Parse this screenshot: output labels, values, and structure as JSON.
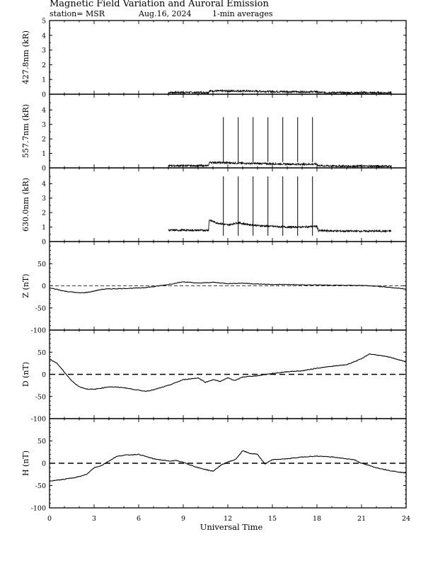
{
  "header": {
    "title": "Magnetic Field Variation and Auroral Emission",
    "station": "station= MSR",
    "date": "Aug.16, 2024",
    "averaging": "1-min averages"
  },
  "chart_data": [
    {
      "type": "line",
      "ylabel": "427.8nm (kR)",
      "ylim": [
        0,
        5
      ],
      "yticks": [
        0,
        1,
        2,
        3,
        4,
        5
      ],
      "xlim": [
        0,
        24
      ],
      "series": [
        {
          "x": [
            8.0,
            10.7,
            10.75,
            12,
            13,
            14,
            15,
            16,
            17,
            18,
            18.1,
            20,
            23.0
          ],
          "y": [
            0.12,
            0.12,
            0.22,
            0.22,
            0.22,
            0.2,
            0.18,
            0.17,
            0.16,
            0.17,
            0.12,
            0.1,
            0.1
          ]
        }
      ]
    },
    {
      "type": "line",
      "ylabel": "557.7nm (kR)",
      "ylim": [
        0,
        4.5
      ],
      "yticks": [
        0,
        1,
        2,
        3,
        4
      ],
      "xlim": [
        0,
        24
      ],
      "series": [
        {
          "x": [
            8.0,
            10.7,
            10.75,
            12,
            13,
            14,
            15,
            16,
            17,
            18,
            18.1,
            20,
            23.0
          ],
          "y": [
            0.15,
            0.15,
            0.38,
            0.35,
            0.32,
            0.3,
            0.28,
            0.26,
            0.25,
            0.26,
            0.15,
            0.12,
            0.12
          ]
        }
      ],
      "spikes": {
        "x": [
          11.7,
          12.7,
          13.7,
          14.7,
          15.7,
          16.7,
          17.7
        ],
        "peak": 3.5
      }
    },
    {
      "type": "line",
      "ylabel": "630.0nm (kR)",
      "ylim": [
        0,
        4.5
      ],
      "yticks": [
        0,
        1,
        2,
        3,
        4
      ],
      "xlim": [
        0,
        24
      ],
      "series": [
        {
          "x": [
            8.0,
            10.7,
            10.75,
            11.2,
            12,
            12.7,
            13.2,
            14,
            15,
            16,
            17,
            18,
            18.1,
            20,
            23.0
          ],
          "y": [
            0.78,
            0.78,
            1.5,
            1.3,
            1.15,
            1.3,
            1.2,
            1.1,
            1.05,
            1.0,
            1.0,
            1.05,
            0.75,
            0.72,
            0.72
          ]
        }
      ],
      "spikes": {
        "x": [
          11.7,
          12.7,
          13.7,
          14.7,
          15.7,
          16.7,
          17.7
        ],
        "peak": 4.5
      }
    },
    {
      "type": "line",
      "ylabel": "Z (nT)",
      "ylim": [
        -100,
        100
      ],
      "yticks": [
        -100,
        -50,
        0,
        50
      ],
      "xlim": [
        0,
        24
      ],
      "dashed_baseline": 0,
      "series": [
        {
          "x": [
            0,
            0.5,
            1,
            1.5,
            2,
            2.5,
            3,
            3.5,
            4,
            5,
            6,
            7,
            8,
            9,
            10,
            11,
            12,
            13,
            14,
            15,
            16,
            17,
            18,
            19,
            20,
            21,
            22,
            23,
            24
          ],
          "y": [
            -5,
            -8,
            -12,
            -14,
            -16,
            -15,
            -12,
            -8,
            -7,
            -6,
            -5,
            -2,
            3,
            9,
            6,
            8,
            5,
            6,
            4,
            3,
            3,
            2,
            2,
            1,
            1,
            1,
            -1,
            -4,
            -7
          ]
        }
      ]
    },
    {
      "type": "line",
      "ylabel": "D (nT)",
      "ylim": [
        -100,
        100
      ],
      "yticks": [
        -100,
        -50,
        0,
        50
      ],
      "xlim": [
        0,
        24
      ],
      "dashed_baseline": 0,
      "series": [
        {
          "x": [
            0,
            0.5,
            1,
            1.5,
            2,
            2.5,
            3,
            3.5,
            4,
            5,
            6,
            6.5,
            7,
            8,
            9,
            10,
            10.5,
            11,
            11.5,
            12,
            12.5,
            13,
            14,
            15,
            16,
            17,
            18,
            19,
            20,
            21,
            21.5,
            22,
            23,
            24
          ],
          "y": [
            35,
            25,
            5,
            -15,
            -28,
            -33,
            -34,
            -31,
            -28,
            -30,
            -36,
            -38,
            -35,
            -25,
            -12,
            -8,
            -18,
            -12,
            -16,
            -8,
            -14,
            -6,
            -3,
            2,
            6,
            8,
            14,
            18,
            22,
            35,
            46,
            44,
            38,
            28
          ]
        }
      ]
    },
    {
      "type": "line",
      "ylabel": "H (nT)",
      "ylim": [
        -100,
        100
      ],
      "yticks": [
        -100,
        -50,
        0,
        50
      ],
      "xlim": [
        0,
        24
      ],
      "dashed_baseline": 0,
      "series": [
        {
          "x": [
            0,
            1,
            2,
            2.5,
            3,
            3.5,
            4,
            4.5,
            5,
            6,
            7,
            8,
            8.5,
            9,
            10,
            11,
            11.5,
            12,
            12.5,
            13,
            13.5,
            14,
            14.5,
            15,
            16,
            17,
            18,
            19,
            20,
            20.5,
            21,
            22,
            23,
            24
          ],
          "y": [
            -40,
            -36,
            -30,
            -25,
            -10,
            -5,
            5,
            15,
            18,
            20,
            10,
            5,
            6,
            2,
            -10,
            -18,
            -5,
            3,
            8,
            28,
            22,
            20,
            -2,
            8,
            10,
            14,
            16,
            14,
            10,
            8,
            0,
            -10,
            -17,
            -22
          ]
        }
      ]
    }
  ],
  "xaxis": {
    "label": "Universal Time",
    "ticks": [
      0,
      3,
      6,
      9,
      12,
      15,
      18,
      21,
      24
    ]
  }
}
